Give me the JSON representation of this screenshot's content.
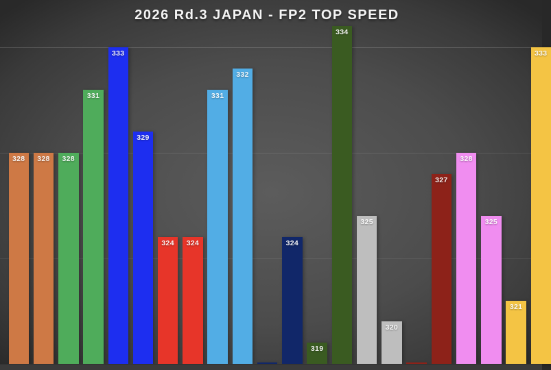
{
  "chart_data": {
    "type": "bar",
    "title": "2026 Rd.3 JAPAN - FP2 TOP SPEED",
    "xlabel": "",
    "ylabel": "",
    "legend": false,
    "grid": true,
    "axis": {
      "ymin": 318,
      "ymax": 335.8,
      "gridline_values": [
        323,
        328,
        333
      ],
      "tick_labels_visible": false
    },
    "colors": {
      "orange": "#ce7945",
      "green": "#4fac5b",
      "blue": "#1d2ef0",
      "red": "#e73529",
      "lightblue": "#52ade5",
      "navy": "#112769",
      "darkgreen": "#3a5b21",
      "gray": "#bebebe",
      "darkred": "#8d2219",
      "magenta": "#f08df0",
      "yellow": "#f4c444"
    },
    "bars": [
      {
        "value": 328,
        "label": "328",
        "color": "#ce7945"
      },
      {
        "value": 328,
        "label": "328",
        "color": "#ce7945"
      },
      {
        "value": 328,
        "label": "328",
        "color": "#4fac5b"
      },
      {
        "value": 331,
        "label": "331",
        "color": "#4fac5b"
      },
      {
        "value": 333,
        "label": "333",
        "color": "#1d2ef0"
      },
      {
        "value": 329,
        "label": "329",
        "color": "#1d2ef0"
      },
      {
        "value": 324,
        "label": "324",
        "color": "#e73529"
      },
      {
        "value": 324,
        "label": "324",
        "color": "#e73529"
      },
      {
        "value": 331,
        "label": "331",
        "color": "#52ade5"
      },
      {
        "value": 332,
        "label": "332",
        "color": "#52ade5"
      },
      {
        "value": null,
        "label": "",
        "color": "#112769"
      },
      {
        "value": 324,
        "label": "324",
        "color": "#112769"
      },
      {
        "value": 319,
        "label": "319",
        "color": "#3a5b21"
      },
      {
        "value": 334,
        "label": "334",
        "color": "#3a5b21"
      },
      {
        "value": 325,
        "label": "325",
        "color": "#bebebe"
      },
      {
        "value": 320,
        "label": "320",
        "color": "#bebebe"
      },
      {
        "value": null,
        "label": "",
        "color": "#8d2219"
      },
      {
        "value": 327,
        "label": "327",
        "color": "#8d2219"
      },
      {
        "value": 328,
        "label": "328",
        "color": "#f08df0"
      },
      {
        "value": 325,
        "label": "325",
        "color": "#f08df0"
      },
      {
        "value": 321,
        "label": "321",
        "color": "#f4c444"
      },
      {
        "value": 333,
        "label": "333",
        "color": "#f4c444"
      }
    ]
  }
}
